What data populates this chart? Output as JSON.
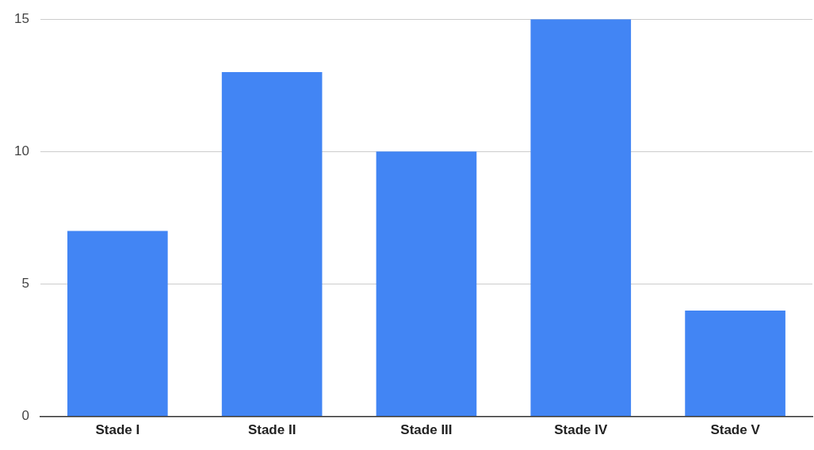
{
  "chart_data": {
    "type": "bar",
    "categories": [
      "Stade I",
      "Stade II",
      "Stade III",
      "Stade IV",
      "Stade V"
    ],
    "values": [
      7,
      13,
      10,
      15,
      4
    ],
    "color": "#4285f4",
    "ylim": [
      0,
      15
    ],
    "yticks": [
      0,
      5,
      10,
      15
    ],
    "grid": "y",
    "legend": false
  }
}
